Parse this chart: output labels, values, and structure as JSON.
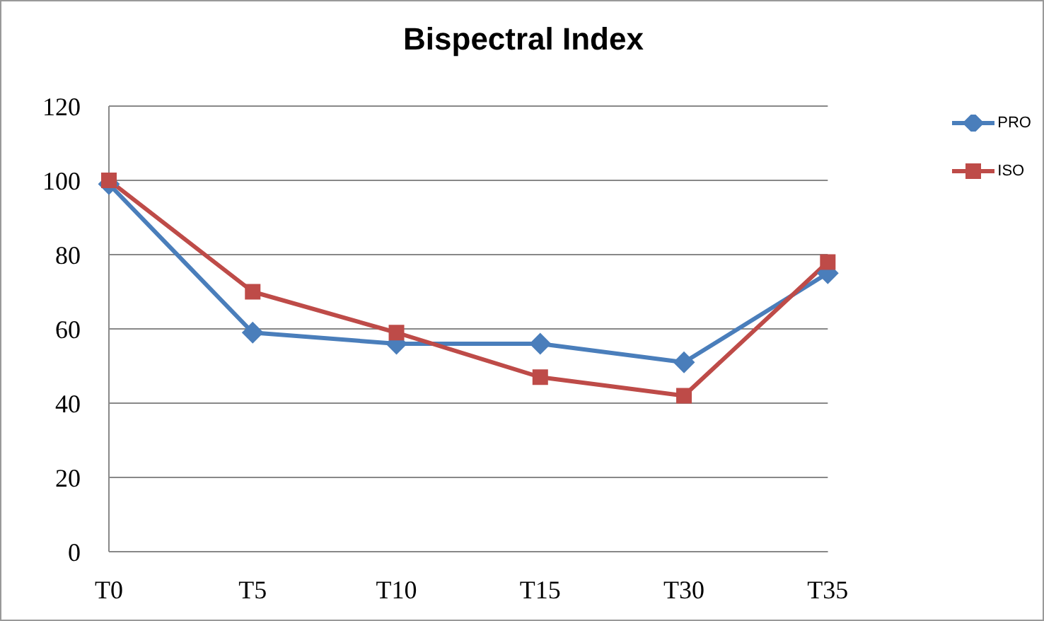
{
  "chart_data": {
    "type": "line",
    "title": "Bispectral Index",
    "categories": [
      "T0",
      "T5",
      "T10",
      "T15",
      "T30",
      "T35"
    ],
    "series": [
      {
        "name": "PRO",
        "color": "#4a7ebb",
        "marker": "diamond",
        "values": [
          99,
          59,
          56,
          56,
          51,
          75
        ]
      },
      {
        "name": "ISO",
        "color": "#be4b48",
        "marker": "square",
        "values": [
          100,
          70,
          59,
          47,
          42,
          78
        ]
      }
    ],
    "ylim": [
      0,
      120
    ],
    "yticks": [
      0,
      20,
      40,
      60,
      80,
      100,
      120
    ],
    "grid": "y",
    "legend": "top right",
    "line_style": "solid"
  }
}
